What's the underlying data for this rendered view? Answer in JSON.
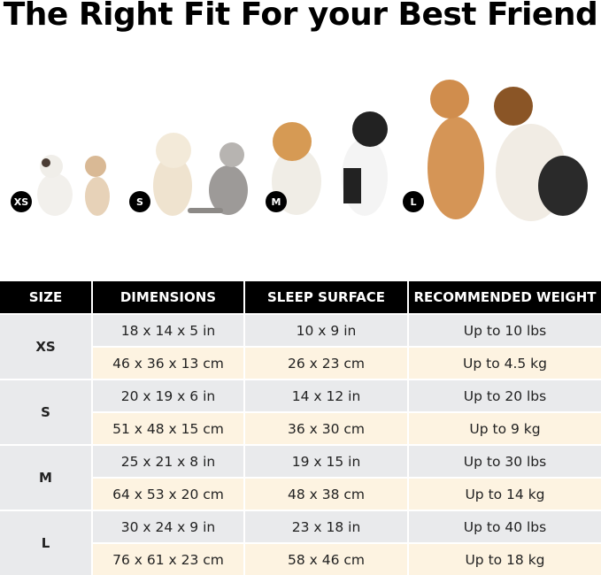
{
  "title": "The Right Fit For your Best Friend",
  "pet_groups": [
    {
      "size": "XS"
    },
    {
      "size": "S"
    },
    {
      "size": "M"
    },
    {
      "size": "L"
    }
  ],
  "table": {
    "headers": [
      "SIZE",
      "DIMENSIONS",
      "SLEEP SURFACE",
      "RECOMMENDED WEIGHT"
    ],
    "rows": [
      {
        "size": "XS",
        "imperial": [
          "18 x 14 x 5 in",
          "10 x 9 in",
          "Up to 10 lbs"
        ],
        "metric": [
          "46 x 36 x 13 cm",
          "26 x 23 cm",
          "Up to 4.5 kg"
        ]
      },
      {
        "size": "S",
        "imperial": [
          "20 x 19 x 6 in",
          "14 x 12 in",
          "Up to 20 lbs"
        ],
        "metric": [
          "51 x 48 x 15 cm",
          "36 x 30 cm",
          "Up to 9 kg"
        ]
      },
      {
        "size": "M",
        "imperial": [
          "25 x 21 x 8 in",
          "19 x 15 in",
          "Up to 30 lbs"
        ],
        "metric": [
          "64 x 53 x 20 cm",
          "48 x 38 cm",
          "Up to 14 kg"
        ]
      },
      {
        "size": "L",
        "imperial": [
          "30 x 24 x 9 in",
          "23 x 18 in",
          "Up to 40 lbs"
        ],
        "metric": [
          "76 x 61 x 23 cm",
          "58 x 46 cm",
          "Up to 18 kg"
        ]
      }
    ]
  },
  "colors": {
    "header": "#000000",
    "row_grey": "#e9eaec",
    "row_cream": "#fdf3e1"
  }
}
